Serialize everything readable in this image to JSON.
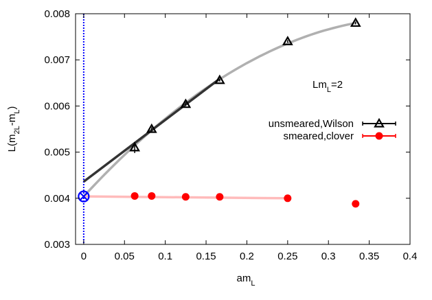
{
  "chart_data": {
    "type": "scatter",
    "xlabel": {
      "main": "am",
      "sub": "L"
    },
    "ylabel": {
      "main": "L(m",
      "sub1": "2L",
      "mid": "-m",
      "sub2": "L",
      "end": ")"
    },
    "xlim": [
      -0.01,
      0.4
    ],
    "ylim": [
      0.003,
      0.008
    ],
    "xticks": [
      0,
      0.05,
      0.1,
      0.15,
      0.2,
      0.25,
      0.3,
      0.35,
      0.4
    ],
    "xtick_labels": [
      "0",
      "0.05",
      "0.1",
      "0.15",
      "0.2",
      "0.25",
      "0.3",
      "0.35",
      "0.4"
    ],
    "yticks": [
      0.003,
      0.004,
      0.005,
      0.006,
      0.007,
      0.008
    ],
    "ytick_labels": [
      "0.003",
      "0.004",
      "0.005",
      "0.006",
      "0.007",
      "0.008"
    ],
    "grid": false,
    "legend_position": "right",
    "annotation": {
      "main": "Lm",
      "sub": "L",
      "end": "=2"
    },
    "series": [
      {
        "name": "unsmeared,Wilson",
        "marker": "triangle",
        "color": "#000000",
        "x": [
          0.0625,
          0.0833,
          0.125,
          0.1667,
          0.25,
          0.3333
        ],
        "y": [
          0.0051,
          0.0055,
          0.00604,
          0.00656,
          0.0074,
          0.0078
        ],
        "yerr": [
          0.00012,
          4e-05,
          4e-05,
          3e-05,
          3e-05,
          3e-05
        ]
      },
      {
        "name": "smeared,clover",
        "marker": "circle",
        "color": "#ff0000",
        "x": [
          0.0625,
          0.0833,
          0.125,
          0.1667,
          0.25,
          0.3333
        ],
        "y": [
          0.00405,
          0.00405,
          0.00403,
          0.00403,
          0.004,
          0.00388
        ],
        "yerr": [
          1e-05,
          1e-05,
          1e-05,
          1e-05,
          1e-05,
          1e-05
        ]
      }
    ],
    "extrapolated_point": {
      "x": 0,
      "y": 0.00404,
      "marker": "circle-x",
      "color": "#0000ff"
    },
    "vertical_line": {
      "x": 0,
      "style": "dotted",
      "color": "#0000ff"
    },
    "fits": [
      {
        "kind": "linear",
        "color": "#333333",
        "x": [
          0,
          0.1667
        ],
        "y": [
          0.00436,
          0.00659
        ]
      },
      {
        "kind": "quadratic",
        "color": "#b0b0b0",
        "coeffs": [
          0.00404,
          0.0192,
          -0.02376
        ],
        "xrange": [
          0,
          0.3333
        ]
      },
      {
        "kind": "linear",
        "color": "#ffbbbb",
        "x": [
          0,
          0.25
        ],
        "y": [
          0.00404,
          0.004
        ]
      }
    ]
  }
}
